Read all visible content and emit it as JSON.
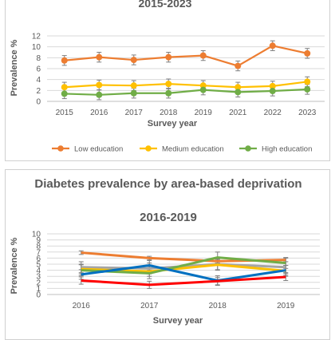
{
  "chart_data": [
    {
      "type": "line",
      "title": "2015-2023",
      "xlabel": "Survey year",
      "ylabel": "Prevalence %",
      "x": [
        "2015",
        "2016",
        "2017",
        "2018",
        "2019",
        "2021",
        "2022",
        "2023"
      ],
      "ylim": [
        0,
        12
      ],
      "yticks": [
        0,
        2,
        4,
        6,
        8,
        10,
        12
      ],
      "grid": true,
      "legend_position": "bottom",
      "series": [
        {
          "name": "Low education",
          "color": "#ED7D31",
          "values": [
            7.5,
            8.1,
            7.6,
            8.1,
            8.4,
            6.5,
            10.2,
            8.8
          ],
          "error": [
            0.9,
            0.9,
            0.9,
            0.9,
            0.9,
            0.9,
            0.9,
            0.9
          ]
        },
        {
          "name": "Medium education",
          "color": "#FFC000",
          "values": [
            2.6,
            3.0,
            2.9,
            3.2,
            2.9,
            2.6,
            2.8,
            3.6
          ],
          "error": [
            0.9,
            0.9,
            0.9,
            0.9,
            0.9,
            0.9,
            0.9,
            0.9
          ]
        },
        {
          "name": "High education",
          "color": "#70AD47",
          "values": [
            1.4,
            1.2,
            1.5,
            1.5,
            2.1,
            1.7,
            1.9,
            2.2
          ],
          "error": [
            0.9,
            0.9,
            0.9,
            0.9,
            0.9,
            0.9,
            0.9,
            0.9
          ]
        }
      ]
    },
    {
      "type": "line",
      "title": "Diabetes prevalence by area-based deprivation",
      "subtitle": "2016-2019",
      "xlabel": "Survey year",
      "ylabel": "Prevalence %",
      "x": [
        "2016",
        "2017",
        "2018",
        "2019"
      ],
      "ylim": [
        0,
        10
      ],
      "yticks": [
        0,
        1,
        2,
        3,
        4,
        5,
        6,
        7,
        8,
        9,
        10
      ],
      "grid": true,
      "series": [
        {
          "color": "#ED7D31",
          "values": [
            6.9,
            6.0,
            5.5,
            5.7
          ],
          "error": [
            0.3,
            0.3,
            0.3,
            0.3
          ]
        },
        {
          "color": "#A5A5A5",
          "values": [
            4.5,
            4.3,
            5.0,
            4.5
          ],
          "error": [
            0.9,
            0.9,
            0.9,
            0.9
          ]
        },
        {
          "color": "#FFC000",
          "values": [
            4.2,
            3.8,
            4.9,
            3.9
          ],
          "error": [
            0.8,
            0.8,
            0.9,
            0.9
          ]
        },
        {
          "color": "#70AD47",
          "values": [
            4.0,
            3.5,
            6.1,
            5.2
          ],
          "error": [
            0.9,
            0.9,
            0.9,
            0.9
          ]
        },
        {
          "color": "#0070C0",
          "values": [
            3.3,
            4.8,
            2.3,
            4.0
          ],
          "error": [
            0.8,
            0.8,
            0.8,
            0.8
          ]
        },
        {
          "color": "#FF0000",
          "values": [
            2.3,
            1.6,
            2.2,
            2.9
          ],
          "error": [
            0.6,
            0.6,
            0.6,
            0.6
          ]
        }
      ]
    }
  ]
}
